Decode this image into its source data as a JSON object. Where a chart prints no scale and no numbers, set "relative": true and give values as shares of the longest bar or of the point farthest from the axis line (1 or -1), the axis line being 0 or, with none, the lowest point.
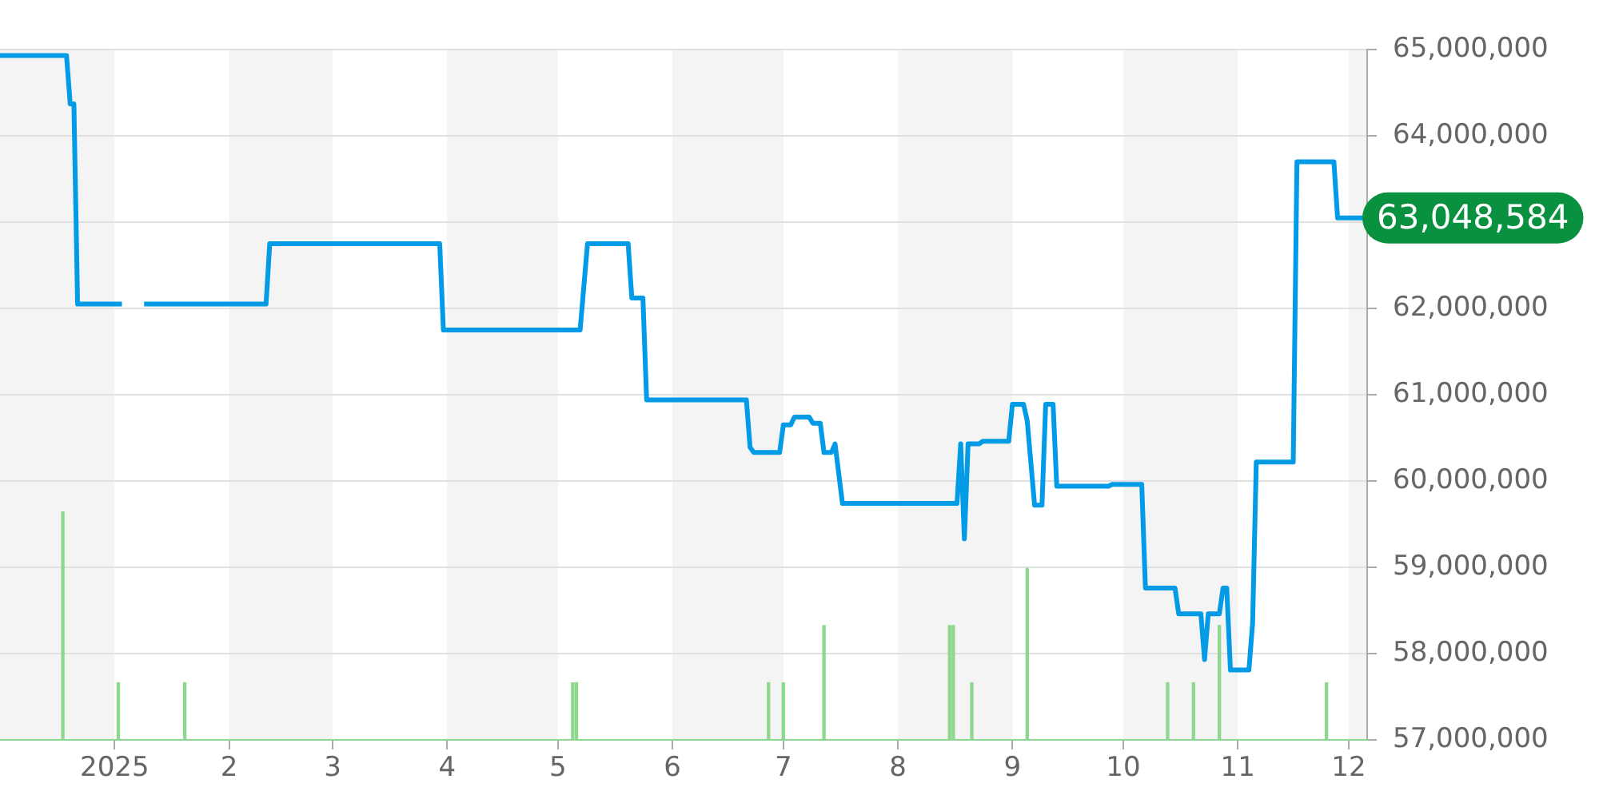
{
  "chart_data": [
    {
      "type": "line",
      "xlim": [
        "2024-12-01",
        "2025-12-06"
      ],
      "ylim": [
        57000000,
        65000000
      ],
      "xticks": [
        {
          "value": "2025-01-01",
          "label": "2025"
        },
        {
          "value": "2025-02-01",
          "label": "2"
        },
        {
          "value": "2025-03-01",
          "label": "3"
        },
        {
          "value": "2025-04-01",
          "label": "4"
        },
        {
          "value": "2025-05-01",
          "label": "5"
        },
        {
          "value": "2025-06-01",
          "label": "6"
        },
        {
          "value": "2025-07-01",
          "label": "7"
        },
        {
          "value": "2025-08-01",
          "label": "8"
        },
        {
          "value": "2025-09-01",
          "label": "9"
        },
        {
          "value": "2025-10-01",
          "label": "10"
        },
        {
          "value": "2025-11-01",
          "label": "11"
        },
        {
          "value": "2025-12-01",
          "label": "12"
        }
      ],
      "yticks": [
        {
          "value": 57000000,
          "label": "57,000,000"
        },
        {
          "value": 58000000,
          "label": "58,000,000"
        },
        {
          "value": 59000000,
          "label": "59,000,000"
        },
        {
          "value": 60000000,
          "label": "60,000,000"
        },
        {
          "value": 61000000,
          "label": "61,000,000"
        },
        {
          "value": 62000000,
          "label": "62,000,000"
        },
        {
          "value": 63000000,
          "label": null
        },
        {
          "value": 64000000,
          "label": "64,000,000"
        },
        {
          "value": 65000000,
          "label": "65,000,000"
        }
      ],
      "grid": "y",
      "legend": false,
      "marker": "none",
      "line_style": "solid",
      "bands": [
        {
          "axis": "x",
          "from": "2024-12-01",
          "to": "2025-01-01",
          "color": "#f4f4f4"
        },
        {
          "axis": "x",
          "from": "2025-02-01",
          "to": "2025-03-01",
          "color": "#f4f4f4"
        },
        {
          "axis": "x",
          "from": "2025-04-01",
          "to": "2025-05-01",
          "color": "#f4f4f4"
        },
        {
          "axis": "x",
          "from": "2025-06-01",
          "to": "2025-07-01",
          "color": "#f4f4f4"
        },
        {
          "axis": "x",
          "from": "2025-08-01",
          "to": "2025-09-01",
          "color": "#f4f4f4"
        },
        {
          "axis": "x",
          "from": "2025-10-01",
          "to": "2025-11-01",
          "color": "#f4f4f4"
        },
        {
          "axis": "x",
          "from": "2025-12-01",
          "to": "2025-12-06",
          "color": "#f4f4f4"
        }
      ],
      "series": [
        {
          "color": "#039be5",
          "x": [
            "2024-12-01",
            "2024-12-19",
            "2024-12-20",
            "2024-12-21",
            "2024-12-22",
            "2025-01-03",
            "2025-01-06",
            "2025-01-09",
            "2025-02-11",
            "2025-02-12",
            "2025-03-30",
            "2025-03-31",
            "2025-05-07",
            "2025-05-09",
            "2025-05-20",
            "2025-05-21",
            "2025-05-24",
            "2025-05-25",
            "2025-06-21",
            "2025-06-22",
            "2025-06-23",
            "2025-06-30",
            "2025-07-01",
            "2025-07-03",
            "2025-07-04",
            "2025-07-08",
            "2025-07-09",
            "2025-07-11",
            "2025-07-12",
            "2025-07-14",
            "2025-07-15",
            "2025-07-17",
            "2025-08-17",
            "2025-08-18",
            "2025-08-19",
            "2025-08-20",
            "2025-08-23",
            "2025-08-24",
            "2025-08-31",
            "2025-09-01",
            "2025-09-04",
            "2025-09-05",
            "2025-09-07",
            "2025-09-09",
            "2025-09-10",
            "2025-09-12",
            "2025-09-13",
            "2025-09-27",
            "2025-09-28",
            "2025-10-06",
            "2025-10-07",
            "2025-10-15",
            "2025-10-16",
            "2025-10-22",
            "2025-10-23",
            "2025-10-24",
            "2025-10-27",
            "2025-10-28",
            "2025-10-29",
            "2025-10-30",
            "2025-11-04",
            "2025-11-05",
            "2025-11-06",
            "2025-11-16",
            "2025-11-17",
            "2025-11-27",
            "2025-11-28",
            "2025-12-05"
          ],
          "values": [
            64930000,
            64930000,
            64370000,
            64370000,
            62050000,
            62050000,
            null,
            62050000,
            62050000,
            62750000,
            62750000,
            61750000,
            61750000,
            62750000,
            62750000,
            62120000,
            62120000,
            60940000,
            60940000,
            60390000,
            60330000,
            60330000,
            60650000,
            60650000,
            60740000,
            60740000,
            60670000,
            60670000,
            60330000,
            60330000,
            60430000,
            59740000,
            59740000,
            60430000,
            59330000,
            60430000,
            60430000,
            60460000,
            60460000,
            60890000,
            60890000,
            60700000,
            59720000,
            59720000,
            60890000,
            60890000,
            59940000,
            59940000,
            59960000,
            59960000,
            58760000,
            58760000,
            58460000,
            58460000,
            57930000,
            58460000,
            58460000,
            58760000,
            58760000,
            57810000,
            57810000,
            58350000,
            60220000,
            60220000,
            63700000,
            63700000,
            63048584,
            63048584
          ],
          "value_labels": [
            null,
            null,
            null,
            null,
            null,
            null,
            null,
            null,
            null,
            null,
            null,
            null,
            null,
            null,
            null,
            null,
            null,
            null,
            null,
            null,
            null,
            null,
            null,
            null,
            null,
            null,
            null,
            null,
            null,
            null,
            null,
            null,
            null,
            null,
            null,
            null,
            null,
            null,
            null,
            null,
            null,
            null,
            null,
            null,
            null,
            null,
            null,
            null,
            null,
            null,
            null,
            null,
            null,
            null,
            null,
            null,
            null,
            null,
            null,
            null,
            null,
            null,
            null,
            null,
            null,
            null,
            null,
            "63,048,584"
          ]
        }
      ]
    },
    {
      "type": "bar",
      "relative": true,
      "xlim": [
        "2024-12-01",
        "2025-12-06"
      ],
      "tick_labels": false,
      "legend": false,
      "series": [
        {
          "color": "#8fd68f",
          "x": [
            "2024-12-18",
            "2025-01-02",
            "2025-01-20",
            "2025-05-05",
            "2025-05-06",
            "2025-06-27",
            "2025-07-01",
            "2025-07-12",
            "2025-08-15",
            "2025-08-16",
            "2025-08-21",
            "2025-09-05",
            "2025-10-13",
            "2025-10-20",
            "2025-10-27",
            "2025-11-25"
          ],
          "values": [
            1,
            0.25,
            0.25,
            0.25,
            0.25,
            0.25,
            0.25,
            0.5,
            0.5,
            0.5,
            0.25,
            0.75,
            0.25,
            0.25,
            0.5,
            0.25
          ]
        }
      ]
    }
  ]
}
